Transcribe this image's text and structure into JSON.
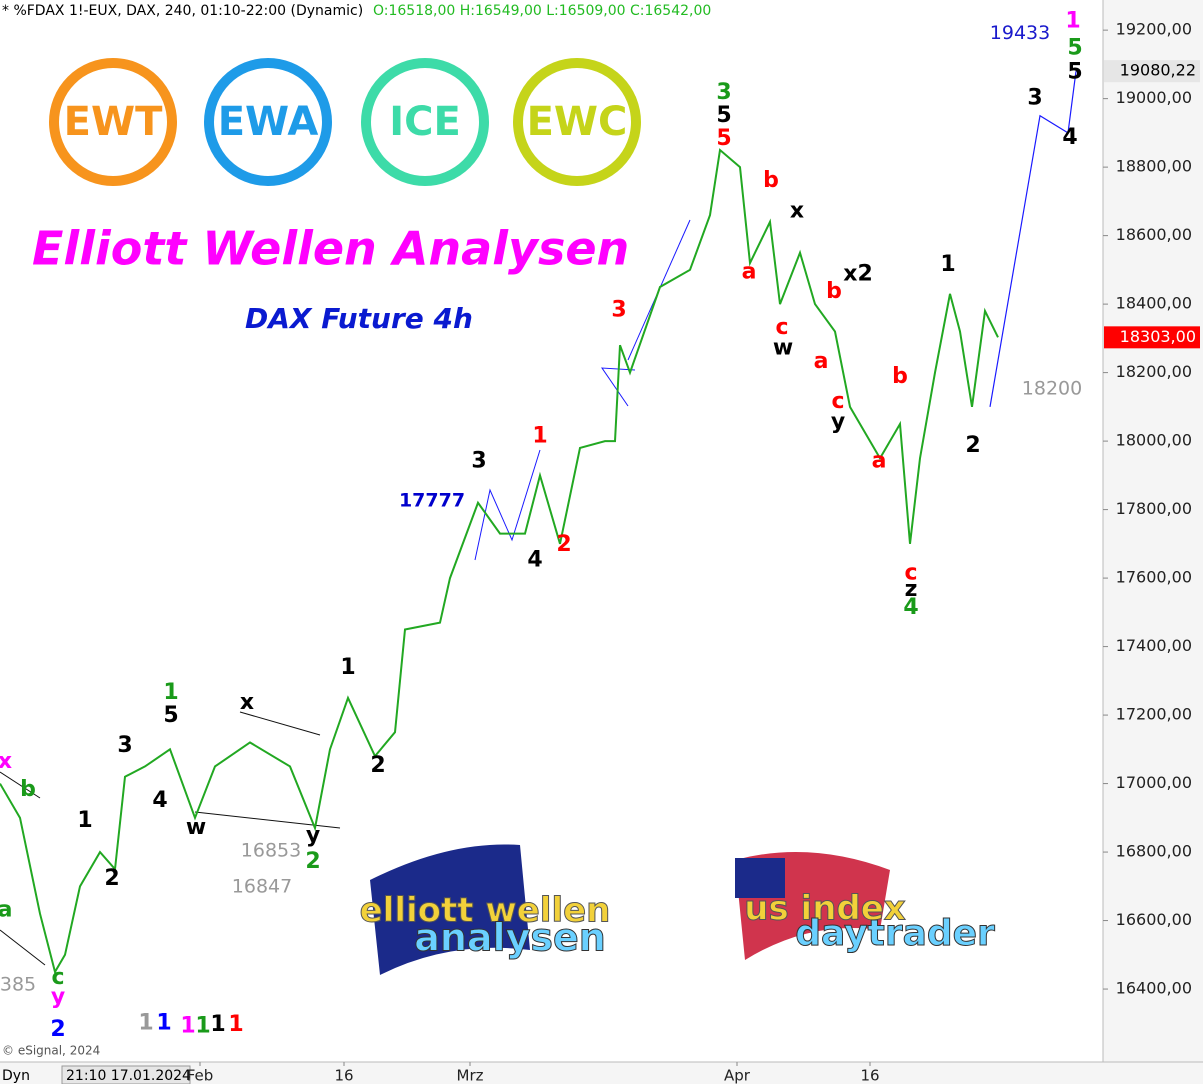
{
  "chart_data": {
    "type": "line",
    "header": "* %FDAX 1!-EUX, DAX, 240, 01:10-22:00 (Dynamic)",
    "ohlc": "O:16518,00 H:16549,00 L:16509,00 C:16542,00",
    "title": "Elliott Wellen Analysen",
    "subtitle": "DAX Future 4h",
    "badges": [
      "EWT",
      "EWA",
      "ICE",
      "EWC"
    ],
    "badge_colors": [
      "#f7941d",
      "#1e9be8",
      "#3ddba8",
      "#c5d41a"
    ],
    "logos": [
      "elliott wellen",
      "analysen",
      "us index",
      "daytrader"
    ],
    "copyright": "© eSignal, 2024",
    "cursor_date": "21:10 17.01.2024",
    "mode": "Dyn",
    "xlim": [
      0,
      1103
    ],
    "xticks": [
      {
        "value": 200,
        "label": "Feb"
      },
      {
        "value": 344,
        "label": "16"
      },
      {
        "value": 470,
        "label": "Mrz"
      },
      {
        "value": 737,
        "label": "Apr"
      },
      {
        "value": 870,
        "label": "16"
      }
    ],
    "ylim": [
      16187,
      19288
    ],
    "yticks": [
      {
        "value": 16400,
        "label": "16400,00"
      },
      {
        "value": 16600,
        "label": "16600,00"
      },
      {
        "value": 16800,
        "label": "16800,00"
      },
      {
        "value": 17000,
        "label": "17000,00"
      },
      {
        "value": 17200,
        "label": "17200,00"
      },
      {
        "value": 17400,
        "label": "17400,00"
      },
      {
        "value": 17600,
        "label": "17600,00"
      },
      {
        "value": 17800,
        "label": "17800,00"
      },
      {
        "value": 18000,
        "label": "18000,00"
      },
      {
        "value": 18200,
        "label": "18200,00"
      },
      {
        "value": 18400,
        "label": "18400,00"
      },
      {
        "value": 18600,
        "label": "18600,00"
      },
      {
        "value": 18800,
        "label": "18800,00"
      },
      {
        "value": 19000,
        "label": "19000,00"
      },
      {
        "value": 19200,
        "label": "19200,00"
      }
    ],
    "price_markers": [
      {
        "value": 19080.22,
        "label": "19080,22",
        "color": "#e6e6e6",
        "text_color": "#000000"
      },
      {
        "value": 18303,
        "label": "18303,00",
        "color": "#ff0000",
        "text_color": "#ffffff"
      }
    ],
    "series": [
      {
        "name": "DAX Future",
        "color": "#22a822",
        "x": [
          0,
          20,
          40,
          55,
          65,
          80,
          100,
          115,
          125,
          145,
          170,
          195,
          215,
          250,
          290,
          315,
          330,
          348,
          375,
          395,
          405,
          440,
          450,
          478,
          500,
          525,
          540,
          560,
          580,
          605,
          615,
          620,
          630,
          660,
          690,
          710,
          720,
          740,
          750,
          770,
          780,
          800,
          815,
          835,
          850,
          870,
          880,
          900,
          910,
          920,
          935,
          950,
          960,
          972,
          985,
          998
        ],
        "values": [
          17000,
          16900,
          16620,
          16450,
          16500,
          16700,
          16800,
          16750,
          17020,
          17050,
          17100,
          16900,
          17050,
          17120,
          17050,
          16870,
          17100,
          17250,
          17080,
          17150,
          17450,
          17470,
          17600,
          17820,
          17730,
          17730,
          17900,
          17700,
          17980,
          18000,
          18000,
          18280,
          18200,
          18450,
          18500,
          18660,
          18850,
          18800,
          18520,
          18640,
          18400,
          18550,
          18400,
          18320,
          18100,
          18000,
          17950,
          18050,
          17700,
          17950,
          18200,
          18430,
          18320,
          18100,
          18380,
          18303
        ]
      },
      {
        "name": "Projection",
        "color": "#1a1aff",
        "x": [
          990,
          1040,
          1068,
          1076
        ],
        "values": [
          18100,
          18950,
          18900,
          19080
        ]
      }
    ],
    "wave_labels": [
      {
        "text": "1",
        "x": 1073,
        "y": 19225,
        "color": "#ff00ff"
      },
      {
        "text": "5",
        "x": 1075,
        "y": 19147,
        "color": "#1a9a1a"
      },
      {
        "text": "5",
        "x": 1075,
        "y": 19077,
        "color": "#000000"
      },
      {
        "text": "3",
        "x": 1035,
        "y": 19001,
        "color": "#000000"
      },
      {
        "text": "4",
        "x": 1070,
        "y": 18885,
        "color": "#000000"
      },
      {
        "text": "3",
        "x": 724,
        "y": 19016,
        "color": "#1a9a1a"
      },
      {
        "text": "5",
        "x": 724,
        "y": 18949,
        "color": "#000000"
      },
      {
        "text": "5",
        "x": 724,
        "y": 18882,
        "color": "#ff0000"
      },
      {
        "text": "b",
        "x": 771,
        "y": 18759,
        "color": "#ff0000"
      },
      {
        "text": "x",
        "x": 797,
        "y": 18671,
        "color": "#000000"
      },
      {
        "text": "a",
        "x": 749,
        "y": 18493,
        "color": "#ff0000"
      },
      {
        "text": "c",
        "x": 782,
        "y": 18330,
        "color": "#ff0000"
      },
      {
        "text": "w",
        "x": 783,
        "y": 18271,
        "color": "#000000"
      },
      {
        "text": "b",
        "x": 834,
        "y": 18435,
        "color": "#ff0000"
      },
      {
        "text": "x2",
        "x": 858,
        "y": 18487,
        "color": "#000000"
      },
      {
        "text": "a",
        "x": 821,
        "y": 18231,
        "color": "#ff0000"
      },
      {
        "text": "c",
        "x": 838,
        "y": 18114,
        "color": "#ff0000"
      },
      {
        "text": "y",
        "x": 838,
        "y": 18055,
        "color": "#000000"
      },
      {
        "text": "b",
        "x": 900,
        "y": 18187,
        "color": "#ff0000"
      },
      {
        "text": "a",
        "x": 879,
        "y": 17941,
        "color": "#ff0000"
      },
      {
        "text": "1",
        "x": 948,
        "y": 18514,
        "color": "#000000"
      },
      {
        "text": "2",
        "x": 973,
        "y": 17985,
        "color": "#000000"
      },
      {
        "text": "c",
        "x": 911,
        "y": 17614,
        "color": "#ff0000"
      },
      {
        "text": "z",
        "x": 911,
        "y": 17565,
        "color": "#000000"
      },
      {
        "text": "4",
        "x": 911,
        "y": 17512,
        "color": "#1a9a1a"
      },
      {
        "text": "3",
        "x": 619,
        "y": 18382,
        "color": "#ff0000"
      },
      {
        "text": "1",
        "x": 540,
        "y": 18014,
        "color": "#ff0000"
      },
      {
        "text": "2",
        "x": 564,
        "y": 17696,
        "color": "#ff0000"
      },
      {
        "text": "3",
        "x": 479,
        "y": 17941,
        "color": "#000000"
      },
      {
        "text": "4",
        "x": 535,
        "y": 17652,
        "color": "#000000"
      },
      {
        "text": "1",
        "x": 348,
        "y": 17337,
        "color": "#000000"
      },
      {
        "text": "2",
        "x": 378,
        "y": 17051,
        "color": "#000000"
      },
      {
        "text": "x",
        "x": 247,
        "y": 17235,
        "color": "#000000"
      },
      {
        "text": "w",
        "x": 196,
        "y": 16870,
        "color": "#000000"
      },
      {
        "text": "y",
        "x": 313,
        "y": 16847,
        "color": "#000000"
      },
      {
        "text": "2",
        "x": 313,
        "y": 16771,
        "color": "#1a9a1a"
      },
      {
        "text": "1",
        "x": 171,
        "y": 17264,
        "color": "#1a9a1a"
      },
      {
        "text": "5",
        "x": 171,
        "y": 17197,
        "color": "#000000"
      },
      {
        "text": "3",
        "x": 125,
        "y": 17109,
        "color": "#000000"
      },
      {
        "text": "4",
        "x": 160,
        "y": 16949,
        "color": "#000000"
      },
      {
        "text": "1",
        "x": 85,
        "y": 16890,
        "color": "#000000"
      },
      {
        "text": "2",
        "x": 112,
        "y": 16721,
        "color": "#000000"
      },
      {
        "text": "b",
        "x": 28,
        "y": 16981,
        "color": "#1a9a1a"
      },
      {
        "text": "a",
        "x": 5,
        "y": 16630,
        "color": "#1a9a1a"
      },
      {
        "text": "x",
        "x": 5,
        "y": 17063,
        "color": "#ff00ff"
      },
      {
        "text": "c",
        "x": 58,
        "y": 16432,
        "color": "#1a9a1a"
      },
      {
        "text": "y",
        "x": 58,
        "y": 16376,
        "color": "#ff00ff"
      },
      {
        "text": "2",
        "x": 58,
        "y": 16280,
        "color": "#0000ff"
      },
      {
        "text": "1",
        "x": 146,
        "y": 16300,
        "color": "#999999"
      },
      {
        "text": "1",
        "x": 164,
        "y": 16300,
        "color": "#0000ff"
      },
      {
        "text": "1",
        "x": 188,
        "y": 16290,
        "color": "#ff00ff"
      },
      {
        "text": "1",
        "x": 203,
        "y": 16290,
        "color": "#1a9a1a"
      },
      {
        "text": "1",
        "x": 218,
        "y": 16295,
        "color": "#000000"
      },
      {
        "text": "1",
        "x": 236,
        "y": 16295,
        "color": "#ff0000"
      }
    ],
    "level_labels": [
      {
        "text": "19433",
        "x": 1020,
        "y": 19190,
        "color": "#1a1acc"
      },
      {
        "text": "18200",
        "x": 1052,
        "y": 18152,
        "color": "#999999"
      },
      {
        "text": "17777",
        "x": 432,
        "y": 17825,
        "color": "#0000cc"
      },
      {
        "text": "16853",
        "x": 271,
        "y": 16803,
        "color": "#999999"
      },
      {
        "text": "16847",
        "x": 262,
        "y": 16698,
        "color": "#999999"
      },
      {
        "text": "385",
        "x": 18,
        "y": 16412,
        "color": "#999999"
      }
    ]
  }
}
